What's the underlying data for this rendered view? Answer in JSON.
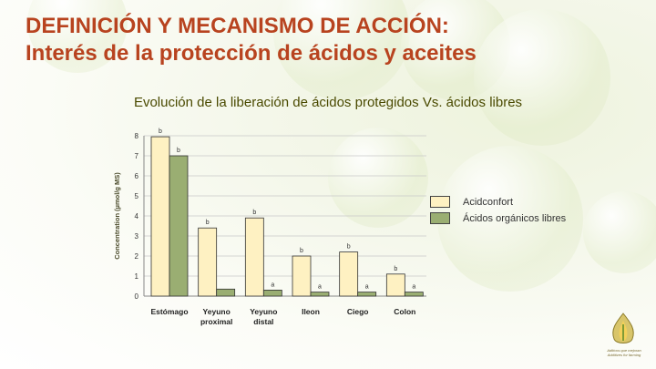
{
  "slide": {
    "title_line1": "DEFINICIÓN Y MECANISMO DE ACCIÓN:",
    "title_line2": "Interés de la protección de ácidos y aceites",
    "subtitle": "Evolución de la liberación de ácidos protegidos Vs. ácidos libres"
  },
  "legend": [
    {
      "label": "Acidconfort",
      "color": "#fef1c2"
    },
    {
      "label": "Ácidos orgánicos libres",
      "color": "#9aae72"
    }
  ],
  "logo": {
    "icon": "flame-icon",
    "caption_line1": "Aditivos que mejoran",
    "caption_line2": "Additives for farming"
  },
  "chart_data": {
    "type": "bar",
    "ylabel": "Concentration (µmol/g MS)",
    "xlabel": "",
    "ylim": [
      0,
      8
    ],
    "yticks": [
      "0",
      "1",
      "2",
      "3",
      "4",
      "5",
      "6",
      "7",
      "8"
    ],
    "grid": true,
    "legend_position": "right",
    "categories": [
      {
        "line1": "Estómago",
        "line2": ""
      },
      {
        "line1": "Yeyuno",
        "line2": "proximal"
      },
      {
        "line1": "Yeyuno",
        "line2": "distal"
      },
      {
        "line1": "Ileon",
        "line2": ""
      },
      {
        "line1": "Ciego",
        "line2": ""
      },
      {
        "line1": "Colon",
        "line2": ""
      }
    ],
    "series": [
      {
        "name": "Acidconfort",
        "color": "#fef1c2",
        "values": [
          7.95,
          3.4,
          3.9,
          2.0,
          2.2,
          1.1
        ],
        "labels": [
          "b",
          "b",
          "b",
          "b",
          "b",
          "b"
        ]
      },
      {
        "name": "Ácidos orgánicos libres",
        "color": "#9aae72",
        "values": [
          7.0,
          0.35,
          0.3,
          0.2,
          0.2,
          0.2
        ],
        "labels": [
          "b",
          "",
          "a",
          "a",
          "a",
          "a"
        ]
      }
    ]
  }
}
